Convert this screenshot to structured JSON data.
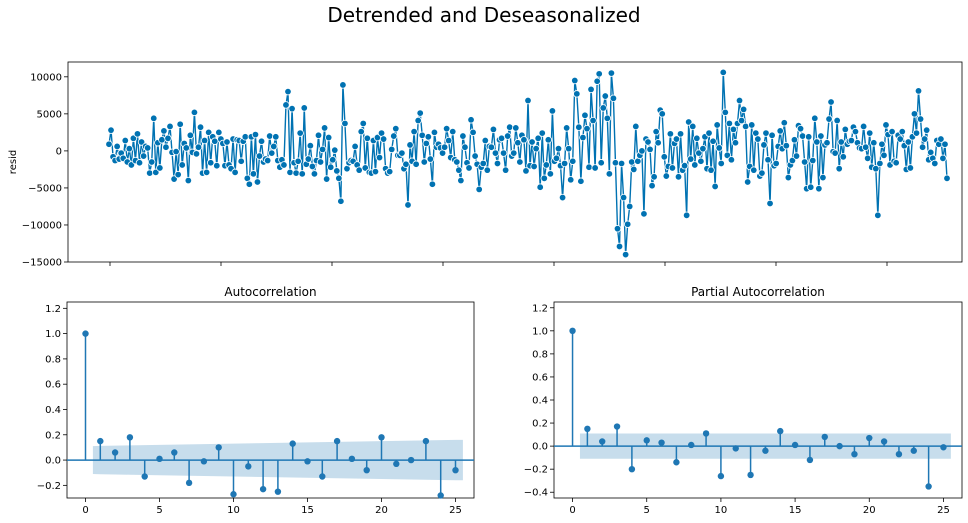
{
  "figure": {
    "suptitle": "Detrended and Deseasonalized"
  },
  "chart_data": [
    {
      "id": "resid",
      "type": "line",
      "title": "",
      "xlabel": "",
      "ylabel": "resid",
      "ylim": [
        -15000,
        12000
      ],
      "yticks": [
        10000,
        5000,
        0,
        -5000,
        -10000,
        -15000
      ],
      "ytick_labels": [
        "10000",
        "5000",
        "0",
        "−5000",
        "−10000",
        "−15000"
      ],
      "xticks_shown": 8,
      "marker": "circle",
      "color": "#0072b2",
      "values": [
        900,
        2800,
        -800,
        -1300,
        600,
        -1100,
        -300,
        -1000,
        1400,
        -1500,
        300,
        -1900,
        1700,
        -1300,
        2300,
        -1600,
        1200,
        -700,
        600,
        400,
        -3000,
        -1500,
        4400,
        -2900,
        1100,
        -2300,
        1500,
        2700,
        500,
        1700,
        3300,
        -200,
        -3800,
        -100,
        -3200,
        3600,
        -1900,
        1000,
        400,
        -4000,
        2100,
        -200,
        5200,
        -400,
        500,
        3200,
        -3000,
        1400,
        -2900,
        2500,
        -1600,
        1900,
        1300,
        -2000,
        2500,
        1600,
        1000,
        -2000,
        1200,
        -1900,
        -2400,
        1600,
        -2900,
        1500,
        1400,
        -1400,
        1300,
        1900,
        -3700,
        -4500,
        1900,
        -3100,
        2200,
        -4200,
        -700,
        1300,
        -1500,
        -1100,
        -1300,
        2000,
        -300,
        600,
        1900,
        -1300,
        -2200,
        -1200,
        -1900,
        6200,
        8000,
        -2900,
        5700,
        -1600,
        -3000,
        -1400,
        2400,
        -3100,
        5800,
        -1800,
        -1100,
        700,
        -2100,
        -3100,
        -1300,
        2100,
        -1500,
        200,
        3100,
        -3800,
        1800,
        -2200,
        -1200,
        100,
        -2700,
        -3700,
        -6800,
        8900,
        3700,
        -2400,
        -1600,
        -1300,
        -1400,
        600,
        -1900,
        -2600,
        2600,
        3700,
        -2300,
        1700,
        -2900,
        -3000,
        1400,
        -2800,
        1800,
        -900,
        2400,
        1600,
        -2400,
        -3000,
        -2800,
        200,
        2000,
        3000,
        -600,
        -600,
        -300,
        -2400,
        -1800,
        -7300,
        800,
        -1400,
        2600,
        -1800,
        4100,
        5100,
        2100,
        -1500,
        1000,
        1900,
        -1100,
        -4500,
        2500,
        500,
        900,
        400,
        -300,
        500,
        3000,
        1400,
        -900,
        2600,
        -1200,
        -1500,
        -2600,
        -4000,
        2000,
        500,
        -1600,
        -2300,
        4200,
        2500,
        -700,
        -1800,
        -5200,
        -2200,
        -1700,
        1400,
        -2600,
        600,
        500,
        2900,
        -300,
        -1700,
        1500,
        1700,
        -300,
        -2600,
        2000,
        3200,
        -700,
        -300,
        3100,
        1100,
        -1500,
        2100,
        1500,
        -2700,
        6800,
        -2000,
        1200,
        -2100,
        300,
        1700,
        -4900,
        2400,
        -3700,
        -1900,
        1500,
        -3100,
        5400,
        -1400,
        -1000,
        300,
        -2000,
        -6300,
        -1700,
        3100,
        300,
        -3900,
        -1400,
        9500,
        7700,
        3200,
        -4100,
        1800,
        4800,
        3000,
        -2200,
        8300,
        4100,
        -2300,
        9400,
        10400,
        -1600,
        5800,
        7400,
        4400,
        -3100,
        10500,
        7100,
        -1600,
        -10500,
        -12900,
        -1700,
        -6300,
        -14000,
        -9900,
        -7500,
        -1500,
        -2500,
        3300,
        -1400,
        -600,
        0,
        -8500,
        1600,
        1200,
        200,
        -4700,
        -3500,
        2600,
        1100,
        5500,
        5000,
        -800,
        -3400,
        -2100,
        2300,
        -2300,
        1000,
        1600,
        -3500,
        2300,
        -2600,
        -2000,
        -8700,
        3900,
        -1100,
        3300,
        -1900,
        1700,
        -300,
        -1400,
        300,
        1900,
        -2400,
        2400,
        -2600,
        1300,
        -4800,
        3500,
        400,
        -1700,
        10600,
        5200,
        -600,
        3700,
        -1200,
        2900,
        1100,
        3700,
        6800,
        4100,
        5600,
        3300,
        -4200,
        -2100,
        3500,
        -2600,
        2400,
        1600,
        -3400,
        -3000,
        800,
        2400,
        -1200,
        -7100,
        2100,
        -2000,
        -1700,
        600,
        2700,
        300,
        3800,
        700,
        -3600,
        -1900,
        -1300,
        1500,
        -700,
        3400,
        3000,
        2000,
        -1500,
        -5100,
        1900,
        -4900,
        -1300,
        4400,
        1200,
        -5100,
        2000,
        -3600,
        800,
        1100,
        4300,
        6600,
        -100,
        -300,
        4100,
        -2400,
        1200,
        -800,
        2900,
        900,
        1300,
        1400,
        3200,
        2600,
        1100,
        400,
        300,
        3300,
        500,
        -1000,
        2400,
        -2200,
        1100,
        -2400,
        -8700,
        -1700,
        900,
        -600,
        3500,
        2200,
        -1900,
        2600,
        -1400,
        -1600,
        2100,
        1600,
        2600,
        700,
        -2500,
        1200,
        -2300,
        1900,
        5000,
        2400,
        8100,
        4300,
        500,
        1600,
        2800,
        -1200,
        -200,
        -1000,
        -1700,
        1400,
        900,
        1600,
        -1000,
        900,
        -3700
      ]
    },
    {
      "id": "acf",
      "type": "stem",
      "title": "Autocorrelation",
      "xlabel": "",
      "ylabel": "",
      "xlim": [
        -1.25,
        26.25
      ],
      "ylim": [
        -0.3,
        1.25
      ],
      "xticks": [
        0,
        5,
        10,
        15,
        20,
        25
      ],
      "xtick_labels": [
        "0",
        "5",
        "10",
        "15",
        "20",
        "25"
      ],
      "yticks": [
        -0.2,
        0.0,
        0.2,
        0.4,
        0.6,
        0.8,
        1.0,
        1.2
      ],
      "ytick_labels": [
        "−0.2",
        "0.0",
        "0.2",
        "0.4",
        "0.6",
        "0.8",
        "1.0",
        "1.2"
      ],
      "lags": [
        0,
        1,
        2,
        3,
        4,
        5,
        6,
        7,
        8,
        9,
        10,
        11,
        12,
        13,
        14,
        15,
        16,
        17,
        18,
        19,
        20,
        21,
        22,
        23,
        24,
        25
      ],
      "values": [
        1.0,
        0.15,
        0.06,
        0.18,
        -0.13,
        0.01,
        0.06,
        -0.18,
        -0.01,
        0.1,
        -0.27,
        -0.05,
        -0.23,
        -0.25,
        0.13,
        -0.01,
        -0.13,
        0.15,
        0.01,
        -0.08,
        0.18,
        -0.03,
        0.0,
        0.15,
        -0.28,
        -0.08
      ],
      "confint_upper": [
        0.11,
        0.112,
        0.114,
        0.116,
        0.118,
        0.12,
        0.122,
        0.124,
        0.126,
        0.128,
        0.13,
        0.132,
        0.134,
        0.136,
        0.138,
        0.14,
        0.142,
        0.144,
        0.146,
        0.148,
        0.15,
        0.152,
        0.154,
        0.156,
        0.158,
        0.16
      ],
      "color": "#1f77b4"
    },
    {
      "id": "pacf",
      "type": "stem",
      "title": "Partial Autocorrelation",
      "xlabel": "",
      "ylabel": "",
      "xlim": [
        -1.25,
        26.25
      ],
      "ylim": [
        -0.45,
        1.25
      ],
      "xticks": [
        0,
        5,
        10,
        15,
        20,
        25
      ],
      "xtick_labels": [
        "0",
        "5",
        "10",
        "15",
        "20",
        "25"
      ],
      "yticks": [
        -0.4,
        -0.2,
        0.0,
        0.2,
        0.4,
        0.6,
        0.8,
        1.0,
        1.2
      ],
      "ytick_labels": [
        "−0.4",
        "−0.2",
        "0.0",
        "0.2",
        "0.4",
        "0.6",
        "0.8",
        "1.0",
        "1.2"
      ],
      "lags": [
        0,
        1,
        2,
        3,
        4,
        5,
        6,
        7,
        8,
        9,
        10,
        11,
        12,
        13,
        14,
        15,
        16,
        17,
        18,
        19,
        20,
        21,
        22,
        23,
        24,
        25
      ],
      "values": [
        1.0,
        0.15,
        0.04,
        0.17,
        -0.2,
        0.05,
        0.03,
        -0.14,
        0.01,
        0.11,
        -0.26,
        -0.02,
        -0.25,
        -0.04,
        0.13,
        0.01,
        -0.12,
        0.08,
        0.0,
        -0.07,
        0.07,
        0.04,
        -0.07,
        -0.04,
        -0.35,
        -0.01
      ],
      "confint_upper": [
        0.11,
        0.11,
        0.11,
        0.11,
        0.11,
        0.11,
        0.11,
        0.11,
        0.11,
        0.11,
        0.11,
        0.11,
        0.11,
        0.11,
        0.11,
        0.11,
        0.11,
        0.11,
        0.11,
        0.11,
        0.11,
        0.11,
        0.11,
        0.11,
        0.11,
        0.11
      ],
      "color": "#1f77b4"
    }
  ]
}
